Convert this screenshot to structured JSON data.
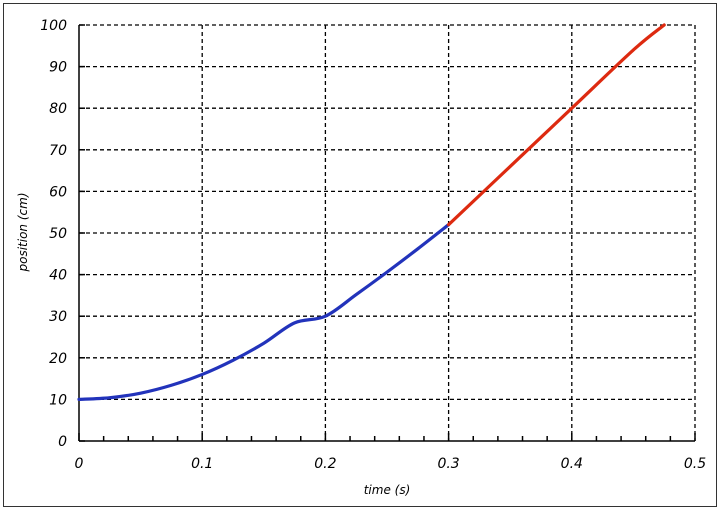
{
  "chart_data": {
    "type": "line",
    "title": "",
    "xlabel": "time (s)",
    "ylabel": "position (cm)",
    "xlim": [
      0,
      0.5
    ],
    "ylim": [
      0,
      100
    ],
    "xticks": [
      "0",
      "0.1",
      "0.2",
      "0.3",
      "0.4",
      "0.5"
    ],
    "yticks": [
      "0",
      "10",
      "20",
      "30",
      "40",
      "50",
      "60",
      "70",
      "80",
      "90",
      "100"
    ],
    "grid": true,
    "x_minor_ticks_per_major": 5,
    "series": [
      {
        "color": "#2233bb",
        "x": [
          0,
          0.025,
          0.05,
          0.075,
          0.1,
          0.125,
          0.15,
          0.175,
          0.2,
          0.225,
          0.25,
          0.275,
          0.3
        ],
        "y": [
          10,
          10.4,
          11.5,
          13.4,
          16,
          19.4,
          23.5,
          28.4,
          30,
          35.2,
          40.6,
          46.2,
          52
        ]
      },
      {
        "color": "#dd2a10",
        "x": [
          0.3,
          0.35,
          0.4,
          0.45,
          0.475
        ],
        "y": [
          52,
          66,
          80,
          94,
          100
        ]
      }
    ]
  }
}
